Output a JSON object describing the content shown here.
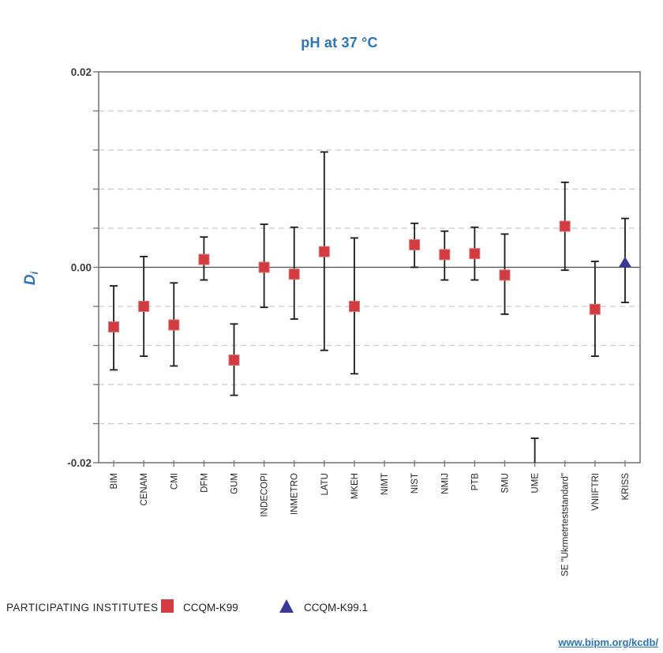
{
  "title": "pH at 37 °C",
  "footer": {
    "link_text": "www.bipm.org/kcdb/"
  },
  "legend": {
    "heading": "PARTICIPATING INSTITUTES",
    "items": [
      {
        "label": "CCQM-K99",
        "marker": "square",
        "color": "#d23b40"
      },
      {
        "label": "CCQM-K99.1",
        "marker": "triangle",
        "color": "#3b3896"
      }
    ]
  },
  "chart_data": {
    "type": "scatter",
    "title": "pH at 37 °C",
    "ylabel": {
      "text": "D",
      "subscript": "i"
    },
    "x_categories": [
      "BIM",
      "CENAM",
      "CMI",
      "DFM",
      "GUM",
      "INDECOPI",
      "INMETRO",
      "LATU",
      "MKEH",
      "NIMT",
      "NIST",
      "NMIJ",
      "PTB",
      "SMU",
      "UME",
      "SE \"Ukrmetrteststandard\"",
      "VNIIFTRI",
      "KRISS"
    ],
    "y_axis": {
      "min": -0.02,
      "max": 0.02,
      "tick_values": [
        0.02,
        0,
        -0.02
      ],
      "tick_labels": [
        "0.02",
        "0.00",
        "-0.02"
      ],
      "gridline_step": 0.004,
      "gridline_style": "dashed",
      "zero_line": "solid"
    },
    "series": [
      {
        "name": "CCQM-K99",
        "marker": "square",
        "color": "#d23b40",
        "points": [
          {
            "institute": "BIM",
            "di": -0.0061,
            "upper": -0.0019,
            "lower": -0.0105
          },
          {
            "institute": "CENAM",
            "di": -0.004,
            "upper": 0.0011,
            "lower": -0.0091
          },
          {
            "institute": "CMI",
            "di": -0.0059,
            "upper": -0.0016,
            "lower": -0.0101
          },
          {
            "institute": "DFM",
            "di": 0.0008,
            "upper": 0.0031,
            "lower": -0.0013
          },
          {
            "institute": "GUM",
            "di": -0.0095,
            "upper": -0.0058,
            "lower": -0.0131
          },
          {
            "institute": "INDECOPI",
            "di": 0.0,
            "upper": 0.0044,
            "lower": -0.0041
          },
          {
            "institute": "INMETRO",
            "di": -0.0007,
            "upper": 0.0041,
            "lower": -0.0053
          },
          {
            "institute": "LATU",
            "di": 0.0016,
            "upper": 0.0118,
            "lower": -0.0085
          },
          {
            "institute": "MKEH",
            "di": -0.004,
            "upper": 0.003,
            "lower": -0.0109
          },
          {
            "institute": "NIST",
            "di": 0.0023,
            "upper": 0.0045,
            "lower": 0.0
          },
          {
            "institute": "NMIJ",
            "di": 0.0013,
            "upper": 0.0037,
            "lower": -0.0013
          },
          {
            "institute": "PTB",
            "di": 0.0014,
            "upper": 0.0041,
            "lower": -0.0013
          },
          {
            "institute": "SMU",
            "di": -0.0008,
            "upper": 0.0034,
            "lower": -0.0048
          },
          {
            "institute": "UME",
            "di": null,
            "upper": -0.0175,
            "lower": -0.02,
            "off_scale_below": true
          },
          {
            "institute": "SE \"Ukrmetrteststandard\"",
            "di": 0.0042,
            "upper": 0.0087,
            "lower": -0.0003
          },
          {
            "institute": "VNIIFTRI",
            "di": -0.0043,
            "upper": 0.0006,
            "lower": -0.0091
          }
        ]
      },
      {
        "name": "CCQM-K99.1",
        "marker": "triangle",
        "color": "#3b3896",
        "points": [
          {
            "institute": "KRISS",
            "di": 0.0005,
            "upper": 0.005,
            "lower": -0.0036
          }
        ]
      }
    ]
  }
}
